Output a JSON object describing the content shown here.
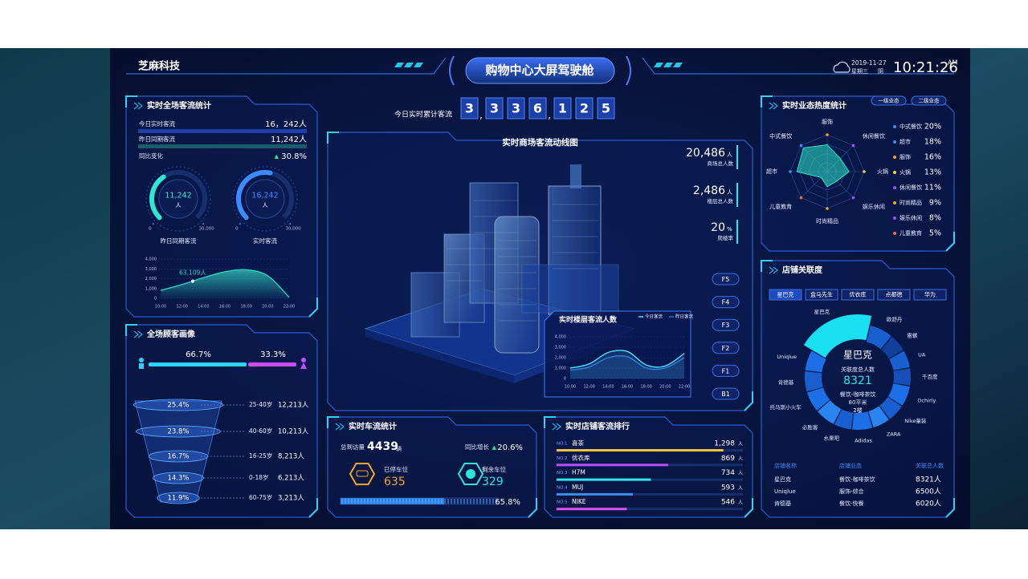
{
  "header": {
    "brand": "芝麻科技",
    "title": "购物中心大屏驾驶舱",
    "date": "2019-11-27",
    "weekday": "星期三",
    "weather": "阴",
    "time": "10:21:26",
    "meridiem": "AM"
  },
  "counter": {
    "label": "今日实时累计客流",
    "digits": [
      "3",
      "3",
      "3",
      "6",
      "1",
      "2",
      "5"
    ],
    "separator": ","
  },
  "traffic_panel": {
    "title": "实时全场客流统计",
    "rows": [
      {
        "label": "今日实时客流",
        "value": "16，242人",
        "color": "#1d3fa8"
      },
      {
        "label": "昨日同期客流",
        "value": "11,242人",
        "color": "#1a5c6b"
      }
    ],
    "change_label": "同比变化",
    "change_arrow": "▲",
    "change_value": "30.8%",
    "gauges": [
      {
        "type": "gauge",
        "value": 11242,
        "value_label": "11,242",
        "unit": "人",
        "lim": [
          0,
          30000
        ],
        "ticks": [
          0,
          {
            "value": 30000,
            "label": "30,000"
          }
        ],
        "label": "昨日同期客流",
        "color": "#2ee6d6"
      },
      {
        "type": "gauge",
        "value": 16242,
        "value_label": "16,242",
        "unit": "人",
        "lim": [
          0,
          30000
        ],
        "ticks": [
          0,
          {
            "value": 30000,
            "label": "30,000"
          }
        ],
        "label": "实时客流",
        "color": "#3b8cff"
      }
    ],
    "chart": {
      "type": "area",
      "x": [
        "10:00",
        "12:00",
        "14:00",
        "16:00",
        "18:00",
        "20:00",
        "22:00"
      ],
      "values": [
        800,
        1400,
        2100,
        2700,
        2900,
        2300,
        100
      ],
      "ylim": [
        0,
        4000
      ],
      "yticks": [
        0,
        {
          "value": 1000,
          "label": "1,000"
        },
        {
          "value": 2000,
          "label": "2,000"
        },
        {
          "value": 3000,
          "label": "3,000"
        },
        {
          "value": 4000,
          "label": "4,000"
        }
      ],
      "annotation": "63,109人",
      "color": "#2fd0c0"
    }
  },
  "portrait": {
    "title": "全场顾客画像",
    "gender": [
      {
        "value": 66.7,
        "label": "66.7%",
        "color": "#29d5ff"
      },
      {
        "value": 33.3,
        "label": "33.3%",
        "color": "#c64dff"
      }
    ],
    "funnel": [
      {
        "value": 25.4,
        "label": "25.4%",
        "age": "25-40岁",
        "count": "12,213人"
      },
      {
        "value": 23.8,
        "label": "23.8%",
        "age": "40-60岁",
        "count": "10,213人"
      },
      {
        "value": 16.7,
        "label": "16.7%",
        "age": "16-25岁",
        "count": "8,213人"
      },
      {
        "value": 14.3,
        "label": "14.3%",
        "age": "0-18岁",
        "count": "6,213人"
      },
      {
        "value": 11.9,
        "label": "11.9%",
        "age": "60-75岁",
        "count": "3,213人"
      }
    ]
  },
  "center": {
    "title": "实时商场客流动线图",
    "stats": [
      {
        "value": "20,486",
        "unit": "人",
        "label": "商场总人数"
      },
      {
        "value": "2,486",
        "unit": "人",
        "label": "楼层总人数"
      },
      {
        "value": "20",
        "unit": "%",
        "label": "爬楼率"
      }
    ],
    "floors": [
      "F5",
      "F4",
      "F3",
      "F2",
      "F1",
      "B1"
    ],
    "floor_chart": {
      "type": "line",
      "title": "实时楼层客流人数",
      "x": [
        "10:00",
        "12:00",
        "14:00",
        "16:00",
        "18:00",
        "20:00",
        "22:00"
      ],
      "series": [
        {
          "name": "今日客流",
          "color": "#4fe0ff",
          "values": [
            1000,
            1400,
            2500,
            2600,
            1300,
            1200,
            2400
          ]
        },
        {
          "name": "昨日客流",
          "color": "#2a6fd8",
          "values": [
            800,
            1100,
            2000,
            2100,
            1000,
            1000,
            2000
          ]
        }
      ],
      "ylim": [
        0,
        4000
      ],
      "yticks": [
        0,
        {
          "value": 1000,
          "label": "1,000"
        },
        {
          "value": 2000,
          "label": "2,000"
        },
        {
          "value": 3000,
          "label": "3,000"
        },
        {
          "value": 4000,
          "label": "4,000"
        }
      ]
    }
  },
  "parking": {
    "title": "实时车流统计",
    "total_label": "总到访量",
    "total": "4439",
    "total_unit": "辆",
    "growth_label": "同比增长",
    "growth_arrow": "▲",
    "growth": "20.6%",
    "parked_label": "已停车位",
    "parked": "635",
    "free_label": "剩余车位",
    "free": "329",
    "occupancy": {
      "value": 65.8,
      "label": "65.8%"
    }
  },
  "ranking": {
    "title": "实时店铺客流排行",
    "unit": "人",
    "xlim": [
      0,
      1450
    ],
    "rows": [
      {
        "rank": "NO.1",
        "name": "喜茶",
        "value": 1298,
        "value_label": "1,298",
        "color": "#f5c342"
      },
      {
        "rank": "NO.2",
        "name": "优衣库",
        "value": 869,
        "color": "#b34dff"
      },
      {
        "rank": "NO.3",
        "name": "H7M",
        "value": 734,
        "color": "#2ee6e6"
      },
      {
        "rank": "NO.4",
        "name": "MUJ",
        "value": 593,
        "color": "#3b8cff"
      },
      {
        "rank": "NO.5",
        "name": "NIKE",
        "value": 546,
        "color": "#e04dff"
      }
    ]
  },
  "radar": {
    "title": "实时业态热度统计",
    "tabs": [
      "一级业态",
      "二级业态"
    ],
    "type": "radar",
    "rlim": [
      0,
      22
    ],
    "axes": [
      "服饰",
      "休闲餐饮",
      "火锅",
      "娱乐休闲",
      "时尚精品",
      "儿童教育",
      "超市",
      "中式餐饮"
    ],
    "legend": [
      {
        "name": "中式餐饮",
        "value": 20,
        "label": "20%",
        "color": "#3b8cff"
      },
      {
        "name": "超市",
        "value": 18,
        "label": "18%",
        "color": "#3b8cff"
      },
      {
        "name": "服饰",
        "value": 16,
        "label": "16%",
        "color": "#f5a623"
      },
      {
        "name": "火锅",
        "value": 13,
        "label": "13%",
        "color": "#f5d142"
      },
      {
        "name": "休闲餐饮",
        "value": 11,
        "label": "11%",
        "color": "#a64dff"
      },
      {
        "name": "时尚精品",
        "value": 9,
        "label": "9%",
        "color": "#f5a623"
      },
      {
        "name": "娱乐休闲",
        "value": 8,
        "label": "8%",
        "color": "#a64dff"
      },
      {
        "name": "儿童教育",
        "value": 5,
        "label": "5%",
        "color": "#ff6a3d"
      }
    ]
  },
  "store": {
    "title": "店铺关联度",
    "tabs": [
      "星巴克",
      "盒马先生",
      "优衣库",
      "点都德",
      "华为"
    ],
    "donut": {
      "type": "donut",
      "segments": [
        {
          "name": "星巴克",
          "value": 22,
          "color": "#19e0f0"
        },
        {
          "name": "欧舒丹",
          "value": 8,
          "color": "#1a5fd0"
        },
        {
          "name": "雷螺",
          "value": 6,
          "color": "#123f9a"
        },
        {
          "name": "UA",
          "value": 6,
          "color": "#1a5fd0"
        },
        {
          "name": "千百度",
          "value": 6,
          "color": "#174fb8"
        },
        {
          "name": "Ochirly",
          "value": 7,
          "color": "#1d6fe8"
        },
        {
          "name": "Nike童装",
          "value": 6,
          "color": "#1a5fd0"
        },
        {
          "name": "ZARA",
          "value": 6,
          "color": "#2a85f0"
        },
        {
          "name": "Adidas",
          "value": 7,
          "color": "#1d6fe8"
        },
        {
          "name": "水果吧",
          "value": 6,
          "color": "#1a5fd0"
        },
        {
          "name": "必胜客",
          "value": 7,
          "color": "#2a85f0"
        },
        {
          "name": "托马斯小火车",
          "value": 7,
          "color": "#1d6fe8"
        },
        {
          "name": "肯德基",
          "value": 7,
          "color": "#1a5fd0"
        },
        {
          "name": "Uniqlue",
          "value": 7,
          "color": "#1d6fe8"
        }
      ],
      "center_name": "星巴克",
      "total_label": "关联度总人数",
      "total": "8321",
      "category": "餐饮-咖啡茶饮",
      "area": "80平米",
      "floor": "2楼"
    },
    "table": {
      "headers": [
        "店铺名称",
        "店铺业态",
        "关联总人数"
      ],
      "rows": [
        [
          "星巴克",
          "餐饮-咖啡茶饮",
          "8321人"
        ],
        [
          "Uniqlue",
          "服饰-综合",
          "6500人"
        ],
        [
          "肯德基",
          "餐饮-快餐",
          "6020人"
        ]
      ]
    }
  }
}
